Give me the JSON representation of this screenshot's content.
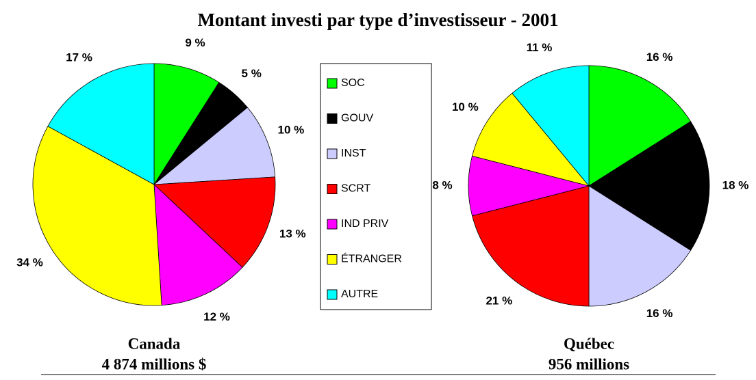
{
  "title": "Montant investi par type d’investisseur  -  2001",
  "chart_data": [
    {
      "type": "pie",
      "title": "Canada",
      "subtitle": "4 874 millions $",
      "categories": [
        "SOC",
        "GOUV",
        "INST",
        "SCRT",
        "IND  PRIV",
        "ÉTRANGER",
        "AUTRE"
      ],
      "values": [
        9,
        5,
        10,
        13,
        12,
        34,
        17
      ],
      "value_labels": [
        "9 %",
        "5 %",
        "10 %",
        "13 %",
        "12 %",
        "34 %",
        "17 %"
      ],
      "colors": [
        "#00ff00",
        "#000000",
        "#ccccff",
        "#ff0000",
        "#ff00ff",
        "#ffff00",
        "#00ffff"
      ]
    },
    {
      "type": "pie",
      "title": "Québec",
      "subtitle": "956 millions",
      "categories": [
        "SOC",
        "GOUV",
        "INST",
        "SCRT",
        "IND  PRIV",
        "ÉTRANGER",
        "AUTRE"
      ],
      "values": [
        16,
        18,
        16,
        21,
        8,
        10,
        11
      ],
      "value_labels": [
        "16 %",
        "18 %",
        "16 %",
        "21 %",
        "8 %",
        "10 %",
        "11 %"
      ],
      "colors": [
        "#00ff00",
        "#000000",
        "#ccccff",
        "#ff0000",
        "#ff00ff",
        "#ffff00",
        "#00ffff"
      ]
    }
  ]
}
